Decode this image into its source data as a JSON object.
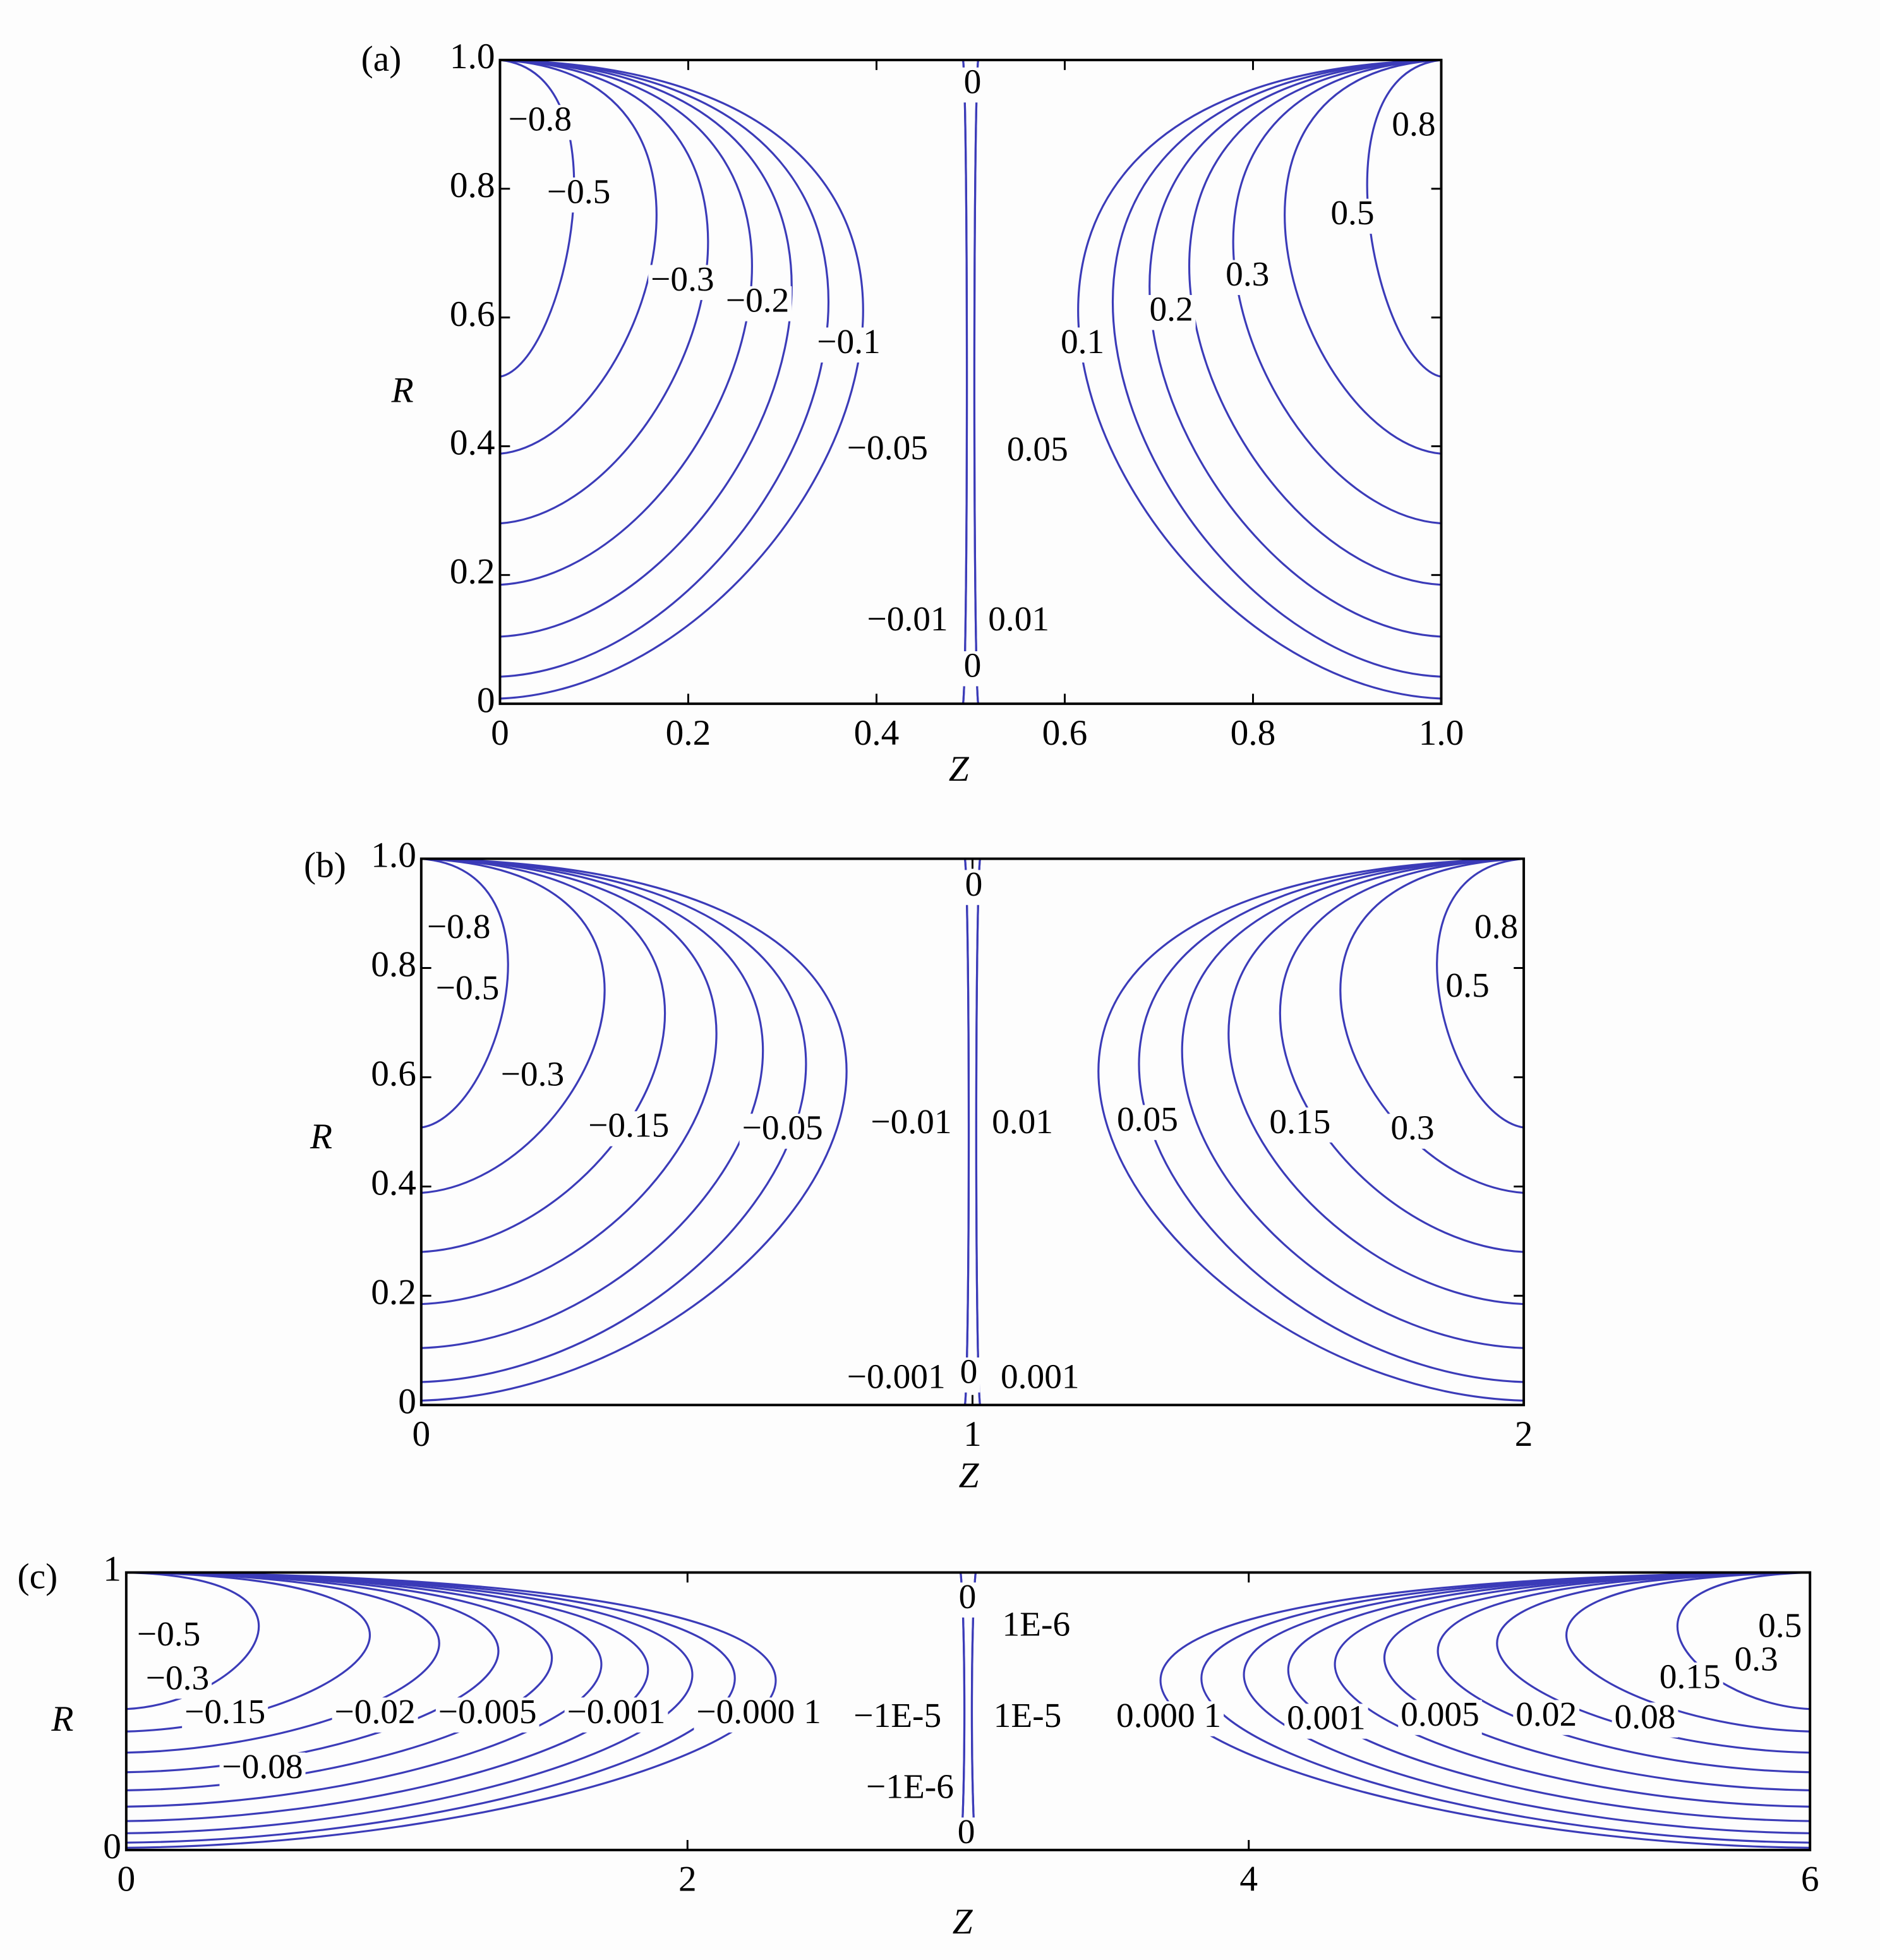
{
  "chart_data": [
    {
      "type": "contour",
      "panel_label": "(a)",
      "xlabel": "Z",
      "ylabel": "R",
      "color": "#3b3bb8",
      "xlim": [
        0,
        1
      ],
      "ylim": [
        0,
        1
      ],
      "xticks": [
        0,
        0.2,
        0.4,
        0.6,
        0.8,
        {
          "value": 1,
          "label": "1.0"
        }
      ],
      "yticks": [
        0,
        0.2,
        0.4,
        0.6,
        0.8,
        {
          "value": 1,
          "label": "1.0"
        }
      ],
      "values": [
        0,
        -0.8,
        -0.5,
        -0.3,
        -0.2,
        -0.1,
        -0.05,
        -0.01,
        0,
        0.01,
        0.05,
        0.1,
        0.2,
        0.3,
        0.5,
        0.8
      ],
      "value_labels": [
        "0",
        "−0.8",
        "−0.5",
        "−0.3",
        "−0.2",
        "−0.1",
        "−0.05",
        "−0.01",
        "0",
        "0.01",
        "0.05",
        "0.1",
        "0.2",
        "0.3",
        "0.5",
        "0.8"
      ]
    },
    {
      "type": "contour",
      "panel_label": "(b)",
      "xlabel": "Z",
      "ylabel": "R",
      "color": "#3b3bb8",
      "xlim": [
        0,
        2
      ],
      "ylim": [
        0,
        1
      ],
      "xticks": [
        0,
        1,
        2
      ],
      "yticks": [
        0,
        0.2,
        0.4,
        0.6,
        0.8,
        {
          "value": 1,
          "label": "1.0"
        }
      ],
      "values": [
        0,
        -0.8,
        -0.5,
        -0.3,
        -0.15,
        -0.05,
        -0.01,
        0.01,
        0.05,
        0.15,
        0.3,
        0.5,
        0.8,
        -0.001,
        0,
        0.001
      ],
      "value_labels": [
        "0",
        "−0.8",
        "−0.5",
        "−0.3",
        "−0.15",
        "−0.05",
        "−0.01",
        "0.01",
        "0.05",
        "0.15",
        "0.3",
        "0.5",
        "0.8",
        "−0.001",
        "0",
        "0.001"
      ]
    },
    {
      "type": "contour",
      "panel_label": "(c)",
      "xlabel": "Z",
      "ylabel": "R",
      "color": "#3b3bb8",
      "xlim": [
        0,
        6
      ],
      "ylim": [
        0,
        1
      ],
      "xticks": [
        0,
        2,
        4,
        6
      ],
      "yticks": [
        0,
        1
      ],
      "values": [
        -0.5,
        -0.3,
        -0.15,
        -0.08,
        -0.02,
        -0.005,
        -0.001,
        -0.0001,
        -1e-05,
        1e-05,
        0.0001,
        0.001,
        0.005,
        0.02,
        0.08,
        0.15,
        0.3,
        0.5,
        0,
        1e-06,
        -1e-06,
        0
      ],
      "value_labels": [
        "−0.5",
        "−0.3",
        "−0.15",
        "−0.08",
        "−0.02",
        "−0.005",
        "−0.001",
        "−0.000 1",
        "−1E-5",
        "1E-5",
        "0.000 1",
        "0.001",
        "0.005",
        "0.02",
        "0.08",
        "0.15",
        "0.3",
        "0.5",
        "0",
        "1E-6",
        "−1E-6",
        "0"
      ]
    }
  ]
}
